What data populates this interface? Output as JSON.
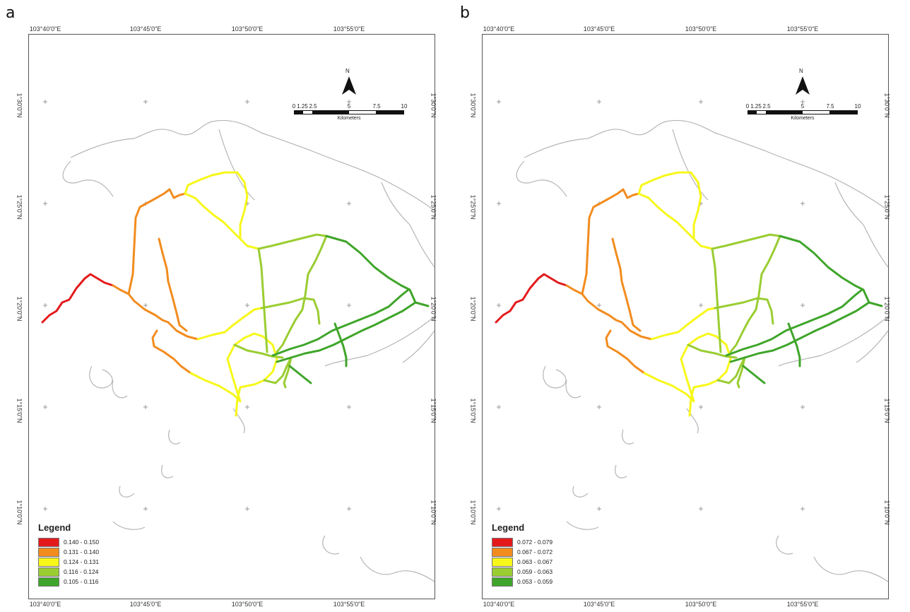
{
  "panels": [
    {
      "letter": "a",
      "legend": {
        "title": "Legend",
        "items": [
          {
            "label": "0.140 - 0.150",
            "color": "#e31a1c"
          },
          {
            "label": "0.131 - 0.140",
            "color": "#f28c1e"
          },
          {
            "label": "0.124 - 0.131",
            "color": "#f7f71a"
          },
          {
            "label": "0.116 - 0.124",
            "color": "#9acd32"
          },
          {
            "label": "0.105 - 0.116",
            "color": "#3fa52a"
          }
        ]
      }
    },
    {
      "letter": "b",
      "legend": {
        "title": "Legend",
        "items": [
          {
            "label": "0.072 - 0.079",
            "color": "#e31a1c"
          },
          {
            "label": "0.067 - 0.072",
            "color": "#f28c1e"
          },
          {
            "label": "0.063 - 0.067",
            "color": "#f7f71a"
          },
          {
            "label": "0.059 - 0.063",
            "color": "#9acd32"
          },
          {
            "label": "0.053 - 0.059",
            "color": "#3fa52a"
          }
        ]
      }
    }
  ],
  "lon_ticks": [
    "103°40'0\"E",
    "103°45'0\"E",
    "103°50'0\"E",
    "103°55'0\"E"
  ],
  "lat_ticks": [
    "1°30'0\"N",
    "1°25'0\"N",
    "1°20'0\"N",
    "1°15'0\"N",
    "1°10'0\"N"
  ],
  "north_label": "N",
  "scale": {
    "labels": [
      "0",
      "1.25",
      "2.5",
      "5",
      "7.5",
      "10"
    ],
    "unit": "Kilometers"
  }
}
